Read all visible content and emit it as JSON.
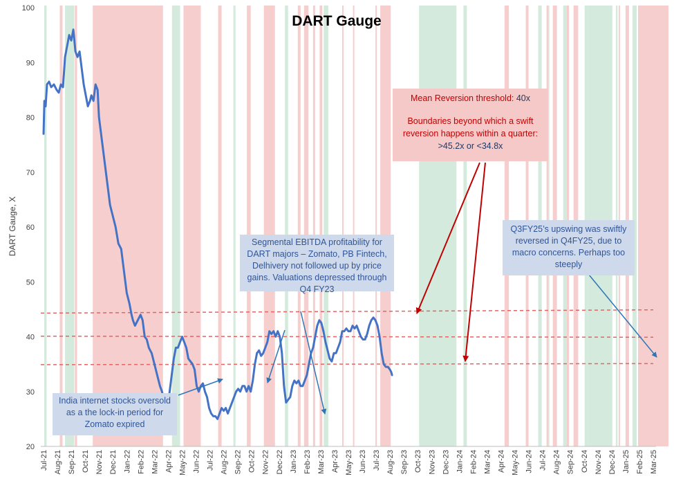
{
  "chart_data": {
    "type": "line",
    "title": "DART Gauge",
    "ylabel": "DART Gauge, X",
    "xlabel": "",
    "ylim": [
      20,
      100
    ],
    "yticks": [
      20,
      30,
      40,
      50,
      60,
      70,
      80,
      90,
      100
    ],
    "x_start": "Jul-21",
    "x_end": "Mar-25",
    "month_labels": [
      "Jul-21",
      "Aug-21",
      "Sep-21",
      "Oct-21",
      "Nov-21",
      "Dec-21",
      "Jan-22",
      "Feb-22",
      "Mar-22",
      "Apr-22",
      "May-22",
      "Jun-22",
      "Jul-22",
      "Aug-22",
      "Sep-22",
      "Oct-22",
      "Nov-22",
      "Dec-22",
      "Jan-23",
      "Feb-23",
      "Mar-23",
      "Apr-23",
      "May-23",
      "Jun-23",
      "Jul-23",
      "Aug-23",
      "Sep-23",
      "Oct-23",
      "Nov-23",
      "Dec-23",
      "Jan-24",
      "Feb-24",
      "Mar-24",
      "Apr-24",
      "May-24",
      "Jun-24",
      "Jul-24",
      "Aug-24",
      "Sep-24",
      "Oct-24",
      "Nov-24",
      "Dec-24",
      "Jan-25",
      "Feb-25",
      "Mar-25"
    ],
    "series": [
      {
        "name": "DART Gauge",
        "color": "#4472c4",
        "points": [
          [
            0.0,
            77
          ],
          [
            0.06,
            83
          ],
          [
            0.15,
            82
          ],
          [
            0.25,
            86
          ],
          [
            0.4,
            86.5
          ],
          [
            0.55,
            85.5
          ],
          [
            0.75,
            86
          ],
          [
            0.95,
            85
          ],
          [
            1.1,
            84.5
          ],
          [
            1.25,
            86
          ],
          [
            1.4,
            85.5
          ],
          [
            1.55,
            91
          ],
          [
            1.7,
            93
          ],
          [
            1.85,
            95
          ],
          [
            2.0,
            94
          ],
          [
            2.15,
            96
          ],
          [
            2.3,
            92
          ],
          [
            2.45,
            91
          ],
          [
            2.6,
            92
          ],
          [
            2.75,
            89
          ],
          [
            2.9,
            86
          ],
          [
            3.05,
            84
          ],
          [
            3.2,
            82
          ],
          [
            3.35,
            83
          ],
          [
            3.45,
            84
          ],
          [
            3.6,
            83
          ],
          [
            3.75,
            86
          ],
          [
            3.9,
            85
          ],
          [
            4.0,
            80
          ],
          [
            4.2,
            76
          ],
          [
            4.4,
            72
          ],
          [
            4.6,
            68
          ],
          [
            4.8,
            64
          ],
          [
            5.0,
            62
          ],
          [
            5.2,
            60
          ],
          [
            5.4,
            57
          ],
          [
            5.6,
            56
          ],
          [
            5.8,
            52
          ],
          [
            6.0,
            48
          ],
          [
            6.2,
            46
          ],
          [
            6.35,
            44
          ],
          [
            6.45,
            43
          ],
          [
            6.6,
            42
          ],
          [
            6.8,
            43
          ],
          [
            7.0,
            44
          ],
          [
            7.15,
            43
          ],
          [
            7.3,
            40
          ],
          [
            7.45,
            39.5
          ],
          [
            7.6,
            38
          ],
          [
            7.8,
            37
          ],
          [
            8.0,
            35
          ],
          [
            8.2,
            33
          ],
          [
            8.4,
            31
          ],
          [
            8.55,
            30
          ],
          [
            8.7,
            28
          ],
          [
            8.85,
            27
          ],
          [
            9.0,
            28
          ],
          [
            9.1,
            30
          ],
          [
            9.25,
            33
          ],
          [
            9.4,
            36
          ],
          [
            9.55,
            38
          ],
          [
            9.7,
            38
          ],
          [
            9.85,
            39
          ],
          [
            10.0,
            40
          ],
          [
            10.15,
            39
          ],
          [
            10.3,
            38
          ],
          [
            10.45,
            36
          ],
          [
            10.6,
            35.5
          ],
          [
            10.75,
            35
          ],
          [
            10.9,
            34
          ],
          [
            11.05,
            31
          ],
          [
            11.2,
            30
          ],
          [
            11.35,
            31
          ],
          [
            11.5,
            31.5
          ],
          [
            11.65,
            30
          ],
          [
            11.8,
            29
          ],
          [
            11.95,
            27
          ],
          [
            12.1,
            26
          ],
          [
            12.25,
            25.5
          ],
          [
            12.4,
            25.5
          ],
          [
            12.55,
            25
          ],
          [
            12.7,
            26
          ],
          [
            12.85,
            27
          ],
          [
            13.0,
            26.5
          ],
          [
            13.15,
            27
          ],
          [
            13.3,
            26
          ],
          [
            13.45,
            27
          ],
          [
            13.6,
            28
          ],
          [
            13.75,
            29
          ],
          [
            13.9,
            30
          ],
          [
            14.05,
            30.5
          ],
          [
            14.2,
            30
          ],
          [
            14.35,
            31
          ],
          [
            14.5,
            31
          ],
          [
            14.65,
            30
          ],
          [
            14.8,
            31
          ],
          [
            14.95,
            30
          ],
          [
            15.1,
            32
          ],
          [
            15.25,
            35
          ],
          [
            15.4,
            37
          ],
          [
            15.55,
            37.5
          ],
          [
            15.7,
            36.5
          ],
          [
            15.85,
            37
          ],
          [
            16.0,
            38
          ],
          [
            16.15,
            39
          ],
          [
            16.3,
            41
          ],
          [
            16.45,
            40.5
          ],
          [
            16.6,
            41
          ],
          [
            16.75,
            40
          ],
          [
            16.9,
            41
          ],
          [
            17.05,
            40
          ],
          [
            17.2,
            37
          ],
          [
            17.35,
            31
          ],
          [
            17.5,
            28
          ],
          [
            17.65,
            28.5
          ],
          [
            17.8,
            29
          ],
          [
            17.95,
            31
          ],
          [
            18.1,
            32
          ],
          [
            18.25,
            31.5
          ],
          [
            18.4,
            32
          ],
          [
            18.55,
            31
          ],
          [
            18.7,
            31
          ],
          [
            18.85,
            32
          ],
          [
            19.0,
            33
          ],
          [
            19.15,
            35
          ],
          [
            19.3,
            37
          ],
          [
            19.45,
            38
          ],
          [
            19.6,
            40
          ],
          [
            19.75,
            42
          ],
          [
            19.9,
            43
          ],
          [
            20.05,
            42.5
          ],
          [
            20.2,
            41
          ],
          [
            20.35,
            39
          ],
          [
            20.5,
            37.5
          ],
          [
            20.65,
            36
          ],
          [
            20.8,
            35.5
          ],
          [
            20.95,
            37
          ],
          [
            21.1,
            37
          ],
          [
            21.25,
            38
          ],
          [
            21.4,
            39
          ],
          [
            21.55,
            41
          ],
          [
            21.7,
            41
          ],
          [
            21.85,
            41.5
          ],
          [
            22.0,
            41
          ],
          [
            22.15,
            41
          ],
          [
            22.3,
            42
          ],
          [
            22.45,
            41.5
          ],
          [
            22.6,
            42
          ],
          [
            22.75,
            41
          ],
          [
            22.9,
            40
          ],
          [
            23.05,
            39.5
          ],
          [
            23.2,
            39.5
          ],
          [
            23.35,
            40.5
          ],
          [
            23.5,
            42
          ],
          [
            23.65,
            43
          ],
          [
            23.8,
            43.5
          ],
          [
            23.95,
            43
          ],
          [
            24.1,
            42
          ],
          [
            24.25,
            40
          ],
          [
            24.4,
            37
          ],
          [
            24.55,
            35
          ],
          [
            24.7,
            34.5
          ],
          [
            24.85,
            34.5
          ],
          [
            25.0,
            34
          ],
          [
            25.1,
            33.5
          ],
          [
            25.15,
            33
          ]
        ]
      }
    ],
    "reference_lines": [
      {
        "name": "Upper band",
        "value_start": 44.3,
        "value_end": 44.9,
        "color": "#e06666",
        "style": "dashed"
      },
      {
        "name": "Mean",
        "value_start": 40.1,
        "value_end": 39.9,
        "color": "#e06666",
        "style": "dashed"
      },
      {
        "name": "Lower band",
        "value_start": 34.9,
        "value_end": 35.1,
        "color": "#e06666",
        "style": "dashed"
      }
    ],
    "shaded_regions": [
      {
        "color": "green",
        "from": 0.05,
        "to": 0.22
      },
      {
        "color": "red",
        "from": 1.17,
        "to": 1.37
      },
      {
        "color": "green",
        "from": 1.55,
        "to": 2.22
      },
      {
        "color": "red",
        "from": 2.26,
        "to": 2.42
      },
      {
        "color": "red",
        "from": 3.55,
        "to": 8.62
      },
      {
        "color": "green",
        "from": 9.27,
        "to": 9.85
      },
      {
        "color": "red",
        "from": 10.1,
        "to": 11.35
      },
      {
        "color": "red",
        "from": 12.6,
        "to": 12.85
      },
      {
        "color": "green",
        "from": 13.7,
        "to": 13.85
      },
      {
        "color": "red",
        "from": 14.67,
        "to": 14.95
      },
      {
        "color": "red",
        "from": 15.9,
        "to": 16.7
      },
      {
        "color": "green",
        "from": 17.42,
        "to": 17.65
      },
      {
        "color": "red",
        "from": 18.35,
        "to": 18.55
      },
      {
        "color": "red",
        "from": 18.8,
        "to": 19.12
      },
      {
        "color": "red",
        "from": 19.45,
        "to": 19.6
      },
      {
        "color": "red",
        "from": 19.92,
        "to": 20.12
      },
      {
        "color": "green",
        "from": 20.22,
        "to": 20.55
      },
      {
        "color": "red",
        "from": 21.55,
        "to": 21.65
      },
      {
        "color": "red",
        "from": 22.33,
        "to": 22.43
      },
      {
        "color": "red",
        "from": 23.95,
        "to": 24.05
      },
      {
        "color": "red",
        "from": 24.3,
        "to": 25.05
      },
      {
        "color": "green",
        "from": 27.1,
        "to": 29.8
      },
      {
        "color": "green",
        "from": 30.3,
        "to": 30.55
      },
      {
        "color": "red",
        "from": 33.27,
        "to": 33.58
      },
      {
        "color": "red",
        "from": 34.8,
        "to": 35.0
      },
      {
        "color": "green",
        "from": 35.7,
        "to": 35.95
      },
      {
        "color": "red",
        "from": 36.3,
        "to": 36.42
      },
      {
        "color": "green",
        "from": 36.42,
        "to": 36.5
      },
      {
        "color": "red",
        "from": 36.75,
        "to": 37.05
      },
      {
        "color": "green",
        "from": 37.5,
        "to": 37.75
      },
      {
        "color": "red",
        "from": 37.75,
        "to": 37.92
      },
      {
        "color": "red",
        "from": 38.25,
        "to": 38.58
      },
      {
        "color": "green",
        "from": 39.05,
        "to": 39.3
      },
      {
        "color": "green",
        "from": 39.3,
        "to": 41.05
      },
      {
        "color": "green",
        "from": 41.3,
        "to": 41.42
      },
      {
        "color": "red",
        "from": 41.5,
        "to": 41.6
      },
      {
        "color": "red",
        "from": 42.0,
        "to": 42.25
      },
      {
        "color": "green",
        "from": 42.5,
        "to": 42.8
      },
      {
        "color": "red",
        "from": 42.9,
        "to": 45.1
      }
    ],
    "legend": "none",
    "grid": false
  },
  "annotations": {
    "lockin": "India internet stocks oversold as a the lock-in period for Zomato expired",
    "ebitda": "Segmental EBITDA profitability for DART majors – Zomato, PB Fintech, Delhivery not followed up by price gains. Valuations depressed through Q4 FY23",
    "threshold_line1": "Mean Reversion threshold:",
    "threshold_value": "40x",
    "threshold_line2": "Boundaries beyond which a swift reversion happens within a quarter:",
    "threshold_bounds": ">45.2x or <34.8x",
    "q3fy25": "Q3FY25’s upswing was swiftly reversed in Q4FY25, due to macro concerns. Perhaps too steeply"
  }
}
